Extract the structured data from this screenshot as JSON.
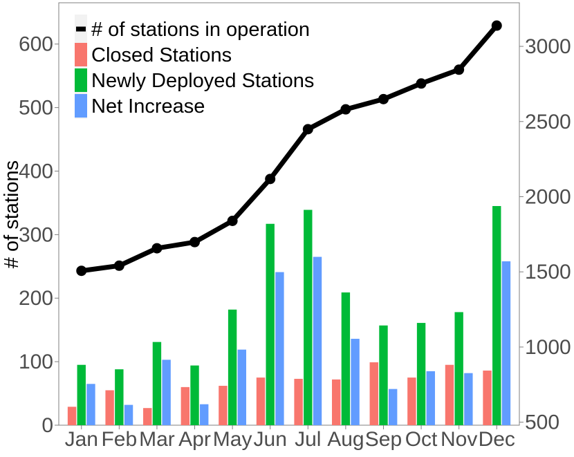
{
  "chart_data": {
    "type": "bar",
    "categories": [
      "Jan",
      "Feb",
      "Mar",
      "Apr",
      "May",
      "Jun",
      "Jul",
      "Aug",
      "Sep",
      "Oct",
      "Nov",
      "Dec"
    ],
    "series": [
      {
        "name": "Closed Stations",
        "kind": "bar",
        "axis": "left",
        "color": "#F8766D",
        "values": [
          29,
          55,
          27,
          60,
          62,
          75,
          73,
          72,
          99,
          75,
          95,
          86
        ]
      },
      {
        "name": "Newly Deployed Stations",
        "kind": "bar",
        "axis": "left",
        "color": "#00BA38",
        "values": [
          95,
          88,
          131,
          94,
          182,
          317,
          339,
          209,
          157,
          161,
          178,
          345
        ]
      },
      {
        "name": "Net Increase",
        "kind": "bar",
        "axis": "left",
        "color": "#619CFF",
        "values": [
          65,
          32,
          103,
          33,
          119,
          241,
          265,
          136,
          57,
          85,
          82,
          258
        ]
      },
      {
        "name": "# of stations in operation",
        "kind": "line",
        "axis": "right",
        "color": "#000000",
        "values": [
          1507,
          1541,
          1657,
          1698,
          1839,
          2118,
          2449,
          2581,
          2649,
          2753,
          2845,
          3138
        ]
      }
    ],
    "ylabel": "# of stations",
    "ylim": [
      0,
      665
    ],
    "y_ticks": [
      0,
      100,
      200,
      300,
      400,
      500,
      600
    ],
    "y_tick_labels": [
      "0",
      "100",
      "200",
      "300",
      "400",
      "500",
      "600"
    ],
    "y2lim": [
      480,
      3290
    ],
    "y2_ticks": [
      500,
      1000,
      1500,
      2000,
      2500,
      3000
    ],
    "y2_tick_labels": [
      "500",
      "1000",
      "1500",
      "2000",
      "2500",
      "3000"
    ],
    "grid": false,
    "legend_placement": "top-left, inside plot",
    "legend_order": [
      "# of stations in operation",
      "Closed Stations",
      "Newly Deployed Stations",
      "Net Increase"
    ]
  }
}
